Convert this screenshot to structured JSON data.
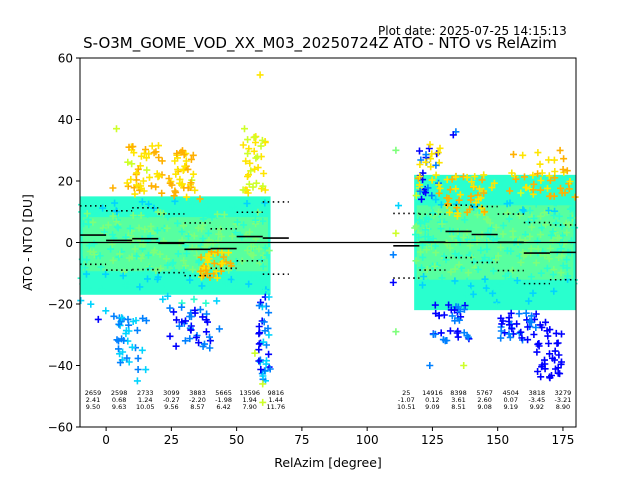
{
  "plot_date": "Plot date: 2025-07-25 14:15:13",
  "chart_data": {
    "type": "scatter",
    "title": "S-O3M_GOME_VOD_XX_M03_20250724Z ATO - NTO vs RelAzim",
    "xlabel": "RelAzim [degree]",
    "ylabel": "ATO - NTO [DU]",
    "xlim": [
      -10,
      180
    ],
    "ylim": [
      -60,
      60
    ],
    "xticks": [
      0,
      25,
      50,
      75,
      100,
      125,
      150,
      175
    ],
    "yticks": [
      -60,
      -40,
      -20,
      0,
      20,
      40,
      60
    ],
    "grid": false,
    "marker": "+",
    "colormap": [
      "#0000ff",
      "#0080ff",
      "#00d4ff",
      "#29ffce",
      "#7dff7a",
      "#ceff29",
      "#ffe500",
      "#ffb000"
    ],
    "reference_line": 0,
    "bins": [
      {
        "x0": -10,
        "x1": 0,
        "count": "2659",
        "mean": "2.41",
        "std": "9.50"
      },
      {
        "x0": 0,
        "x1": 10,
        "count": "2598",
        "mean": "0.68",
        "std": "9.63"
      },
      {
        "x0": 10,
        "x1": 20,
        "count": "2733",
        "mean": "1.24",
        "std": "10.05"
      },
      {
        "x0": 20,
        "x1": 30,
        "count": "3099",
        "mean": "-0.27",
        "std": "9.56"
      },
      {
        "x0": 30,
        "x1": 40,
        "count": "3883",
        "mean": "-2.20",
        "std": "8.57"
      },
      {
        "x0": 40,
        "x1": 50,
        "count": "5665",
        "mean": "-1.98",
        "std": "6.42"
      },
      {
        "x0": 50,
        "x1": 60,
        "count": "13596",
        "mean": "1.94",
        "std": "7.90"
      },
      {
        "x0": 60,
        "x1": 70,
        "count": "9816",
        "mean": "1.44",
        "std": "11.76"
      },
      {
        "x0": 110,
        "x1": 120,
        "count": "25",
        "mean": "-1.07",
        "std": "10.51"
      },
      {
        "x0": 120,
        "x1": 130,
        "count": "14916",
        "mean": "0.12",
        "std": "9.09"
      },
      {
        "x0": 130,
        "x1": 140,
        "count": "8398",
        "mean": "3.61",
        "std": "8.51"
      },
      {
        "x0": 140,
        "x1": 150,
        "count": "5767",
        "mean": "2.60",
        "std": "9.08"
      },
      {
        "x0": 150,
        "x1": 160,
        "count": "4504",
        "mean": "0.07",
        "std": "9.19"
      },
      {
        "x0": 160,
        "x1": 170,
        "count": "3818",
        "mean": "-3.45",
        "std": "9.92"
      },
      {
        "x0": 170,
        "x1": 180,
        "count": "3279",
        "mean": "-3.21",
        "std": "8.90"
      }
    ],
    "clusters": [
      {
        "x0": -10,
        "x1": 63,
        "core": [
          -17,
          15
        ],
        "extent": [
          -30,
          30
        ]
      },
      {
        "x0": 118,
        "x1": 180,
        "core": [
          -22,
          22
        ],
        "extent": [
          -34,
          32
        ]
      }
    ],
    "outliers": [
      {
        "x": 59,
        "y": 54.5,
        "color": "#ffe500"
      },
      {
        "x": 111,
        "y": 30,
        "color": "#7dff7a"
      },
      {
        "x": 111,
        "y": -29,
        "color": "#7dff7a"
      },
      {
        "x": 112,
        "y": 12,
        "color": "#00d4ff"
      },
      {
        "x": 110,
        "y": -13,
        "color": "#0000ff"
      },
      {
        "x": 110,
        "y": -4,
        "color": "#0080ff"
      },
      {
        "x": 111,
        "y": 3,
        "color": "#ceff29"
      },
      {
        "x": 134,
        "y": 36,
        "color": "#0080ff"
      },
      {
        "x": 133,
        "y": 35,
        "color": "#0000ff"
      },
      {
        "x": 124,
        "y": -40,
        "color": "#0080ff"
      },
      {
        "x": 137,
        "y": -40,
        "color": "#ceff29"
      },
      {
        "x": 170,
        "y": -44,
        "color": "#0000ff"
      },
      {
        "x": 60,
        "y": -46,
        "color": "#ceff29"
      },
      {
        "x": 60,
        "y": -52,
        "color": "#ceff29"
      },
      {
        "x": 12,
        "y": -45,
        "color": "#00d4ff"
      },
      {
        "x": 4,
        "y": 37,
        "color": "#ceff29"
      },
      {
        "x": 53,
        "y": 37,
        "color": "#ceff29"
      },
      {
        "x": 57,
        "y": -36,
        "color": "#ceff29"
      },
      {
        "x": 3,
        "y": -24,
        "color": "#0080ff"
      },
      {
        "x": -3,
        "y": -25,
        "color": "#0000ff"
      }
    ]
  }
}
